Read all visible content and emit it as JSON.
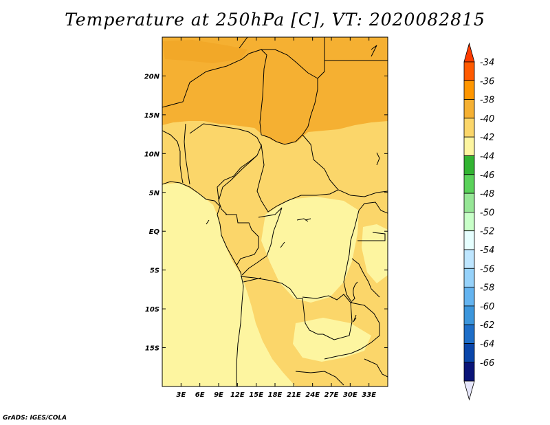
{
  "title": "Temperature at 250hPa [C], VT: 2020082815",
  "credit": "GrADS: IGES/COLA",
  "map": {
    "lon_range": [
      0,
      36
    ],
    "lat_range": [
      -20,
      25
    ],
    "lon_ticks": [
      {
        "value": 3,
        "label": "3E"
      },
      {
        "value": 6,
        "label": "6E"
      },
      {
        "value": 9,
        "label": "9E"
      },
      {
        "value": 12,
        "label": "12E"
      },
      {
        "value": 15,
        "label": "15E"
      },
      {
        "value": 18,
        "label": "18E"
      },
      {
        "value": 21,
        "label": "21E"
      },
      {
        "value": 24,
        "label": "24E"
      },
      {
        "value": 27,
        "label": "27E"
      },
      {
        "value": 30,
        "label": "30E"
      },
      {
        "value": 33,
        "label": "33E"
      }
    ],
    "lat_ticks": [
      {
        "value": 20,
        "label": "20N"
      },
      {
        "value": 15,
        "label": "15N"
      },
      {
        "value": 10,
        "label": "10N"
      },
      {
        "value": 5,
        "label": "5N"
      },
      {
        "value": 0,
        "label": "EQ"
      },
      {
        "value": -5,
        "label": "5S"
      },
      {
        "value": -10,
        "label": "10S"
      },
      {
        "value": -15,
        "label": "15S"
      }
    ]
  },
  "colorbar": {
    "labels": [
      "-34",
      "-36",
      "-38",
      "-40",
      "-42",
      "-44",
      "-46",
      "-48",
      "-50",
      "-52",
      "-54",
      "-56",
      "-58",
      "-60",
      "-62",
      "-64",
      "-66"
    ],
    "colors": [
      "#ff5a00",
      "#ff9600",
      "#f5b032",
      "#fbd66a",
      "#fdf5a0",
      "#32b432",
      "#5ad25a",
      "#96e696",
      "#c8ffc8",
      "#e6ffff",
      "#bee6ff",
      "#96d2fa",
      "#64b4f0",
      "#3c96dc",
      "#1e6ec8",
      "#0a46aa",
      "#0a1478"
    ],
    "top_color": "#ff3c00",
    "bottom_color": "#e6e6fa"
  }
}
